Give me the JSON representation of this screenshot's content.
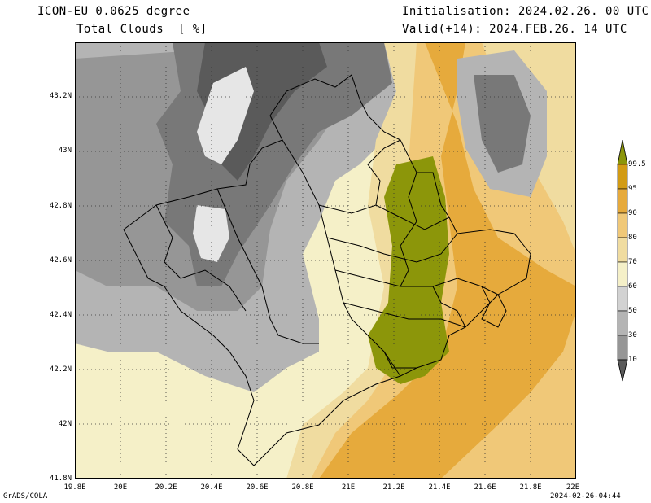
{
  "header": {
    "model": "ICON-EU 0.0625 degree",
    "variable": "Total Clouds  [ %]",
    "init": "Initialisation: 2024.02.26. 00 UTC",
    "valid": "Valid(+14): 2024.FEB.26. 14 UTC"
  },
  "footer": {
    "credit": "GrADS/COLA",
    "timestamp": "2024-02-26-04:44"
  },
  "axes": {
    "x_ticks": [
      "19.8E",
      "20E",
      "20.2E",
      "20.4E",
      "20.6E",
      "20.8E",
      "21E",
      "21.2E",
      "21.4E",
      "21.6E",
      "21.8E",
      "22E"
    ],
    "y_ticks": [
      "43.2N",
      "43N",
      "42.8N",
      "42.6N",
      "42.4N",
      "42.2N",
      "42N",
      "41.8N"
    ]
  },
  "colorbar": {
    "labels": [
      "99.5",
      "95",
      "90",
      "80",
      "70",
      "60",
      "50",
      "30",
      "10"
    ],
    "colors": [
      "#ffffff",
      "#5a5a5a",
      "#787878",
      "#969696",
      "#b4b4b4",
      "#d2d2d2",
      "#f5f0c8",
      "#f0dca0",
      "#f0c878",
      "#e6aa3c",
      "#d29b14",
      "#8c960a"
    ],
    "grid": "dotted"
  }
}
